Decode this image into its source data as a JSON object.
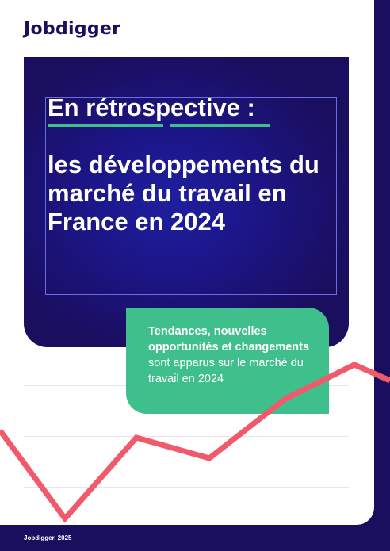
{
  "brand": {
    "logo_text": "Jobdigger"
  },
  "hero": {
    "title_line1": "En rétrospective :",
    "title_line2": "les développements du marché du travail en France en 2024"
  },
  "callout": {
    "bold_text": "Tendances, nouvelles opportunités et change­ments",
    "regular_text": " sont apparus sur le marché du travail en 2024"
  },
  "footer": {
    "text": "Jobdigger, 2025"
  },
  "colors": {
    "navy": "#1a0e5e",
    "green": "#3ebf8b",
    "line": "#f05a6a"
  },
  "decor_line_icon": "trend-line-icon"
}
